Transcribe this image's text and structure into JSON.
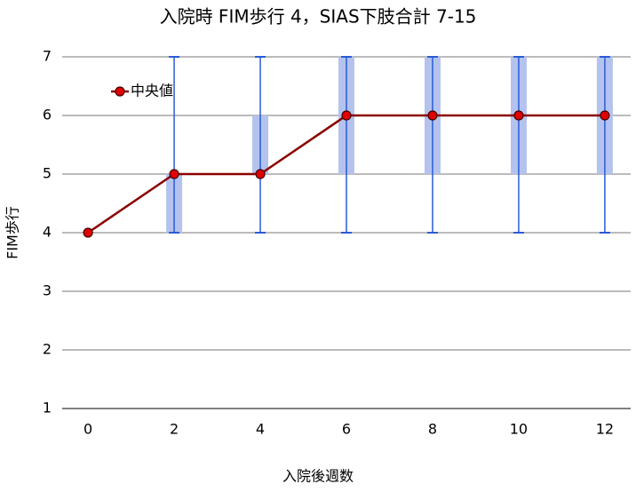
{
  "chart_data": {
    "type": "line",
    "title": "入院時 FIM歩行 4，SIAS下肢合計 7-15",
    "xlabel": "入院後週数",
    "ylabel": "FIM歩行",
    "x": [
      0,
      2,
      4,
      6,
      8,
      10,
      12
    ],
    "xlim": [
      -0.6,
      12.6
    ],
    "xticks": [
      0,
      2,
      4,
      6,
      8,
      10,
      12
    ],
    "ylim": [
      1,
      7
    ],
    "yticks": [
      1,
      2,
      3,
      4,
      5,
      6,
      7
    ],
    "grid": true,
    "legend": "upper left",
    "series": [
      {
        "name": "中央値",
        "color": "#8b0000",
        "marker_color": "#e00000",
        "values": [
          4,
          5,
          5,
          6,
          6,
          6,
          6
        ]
      }
    ],
    "boxes": {
      "color": "#b4c3ee",
      "q1": [
        null,
        4,
        5,
        5,
        5,
        5,
        5
      ],
      "q3": [
        null,
        5,
        6,
        7,
        7,
        7,
        7
      ]
    },
    "whiskers": {
      "color": "#2a5bd7",
      "low": [
        null,
        4,
        4,
        4,
        4,
        4,
        4
      ],
      "high": [
        null,
        7,
        7,
        7,
        7,
        7,
        7
      ]
    }
  }
}
